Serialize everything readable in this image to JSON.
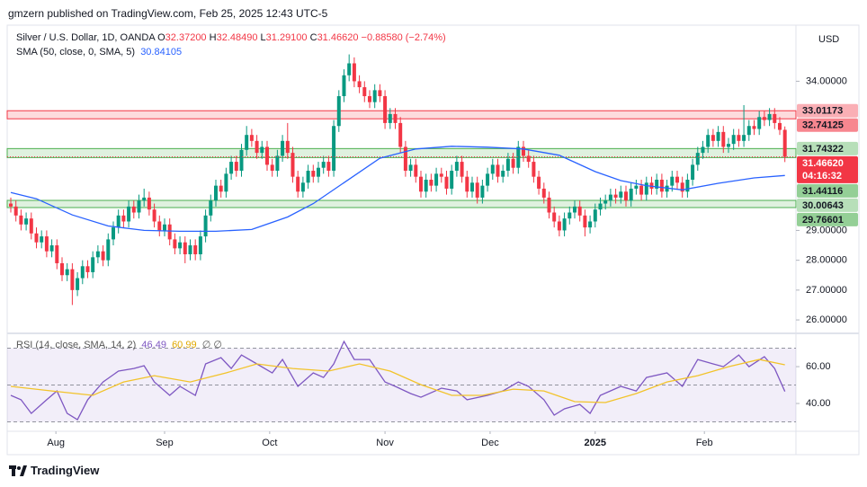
{
  "chart_data": {
    "type": "candlestick",
    "byline": "gmzern published on TradingView.com, Feb 25, 2025 12:43 UTC-5",
    "currency": "USD",
    "header": {
      "title": "Silver / U.S. Dollar, 1D, OANDA",
      "fields": [
        {
          "label": "O",
          "value": "32.37200"
        },
        {
          "label": "H",
          "value": "32.48490"
        },
        {
          "label": "L",
          "value": "31.29100"
        },
        {
          "label": "C",
          "value": "31.46620"
        }
      ],
      "change": "−0.88580 (−2.74%)"
    },
    "up_color": "#089981",
    "down_color": "#f23645",
    "ohlc": [
      [
        29.9,
        30.1,
        29.6,
        29.8
      ],
      [
        29.8,
        30.0,
        29.3,
        29.5
      ],
      [
        29.5,
        29.7,
        29.0,
        29.2
      ],
      [
        29.2,
        29.6,
        29.0,
        29.4
      ],
      [
        29.4,
        29.6,
        28.7,
        28.9
      ],
      [
        28.9,
        29.1,
        28.4,
        28.6
      ],
      [
        28.6,
        29.0,
        28.4,
        28.8
      ],
      [
        28.8,
        29.0,
        28.1,
        28.3
      ],
      [
        28.3,
        28.7,
        28.1,
        28.5
      ],
      [
        28.5,
        28.7,
        27.7,
        27.9
      ],
      [
        27.9,
        28.1,
        27.3,
        27.5
      ],
      [
        27.5,
        27.9,
        27.3,
        27.7
      ],
      [
        27.7,
        27.9,
        26.5,
        27.0
      ],
      [
        27.0,
        27.6,
        26.8,
        27.4
      ],
      [
        27.4,
        28.0,
        27.2,
        27.8
      ],
      [
        27.8,
        28.0,
        27.4,
        27.6
      ],
      [
        27.6,
        28.3,
        27.4,
        28.1
      ],
      [
        28.1,
        28.5,
        27.9,
        28.3
      ],
      [
        28.3,
        28.5,
        27.8,
        28.0
      ],
      [
        28.0,
        28.9,
        27.8,
        28.7
      ],
      [
        28.7,
        29.3,
        28.5,
        29.1
      ],
      [
        29.1,
        29.7,
        28.9,
        29.5
      ],
      [
        29.5,
        29.7,
        29.1,
        29.3
      ],
      [
        29.3,
        30.0,
        29.1,
        29.8
      ],
      [
        29.8,
        30.0,
        29.4,
        29.6
      ],
      [
        29.6,
        30.2,
        29.4,
        30.0
      ],
      [
        30.0,
        30.4,
        29.8,
        30.1
      ],
      [
        30.1,
        30.3,
        29.5,
        29.7
      ],
      [
        29.7,
        29.9,
        29.1,
        29.3
      ],
      [
        29.3,
        29.5,
        28.8,
        29.0
      ],
      [
        29.0,
        29.4,
        28.8,
        29.2
      ],
      [
        29.2,
        29.4,
        28.5,
        28.7
      ],
      [
        28.7,
        28.9,
        28.2,
        28.4
      ],
      [
        28.4,
        28.8,
        28.2,
        28.6
      ],
      [
        28.6,
        28.8,
        27.9,
        28.2
      ],
      [
        28.2,
        28.7,
        28.0,
        28.5
      ],
      [
        28.5,
        28.7,
        28.0,
        28.2
      ],
      [
        28.2,
        29.0,
        28.0,
        28.8
      ],
      [
        28.8,
        29.7,
        28.6,
        29.5
      ],
      [
        29.5,
        30.2,
        29.3,
        30.0
      ],
      [
        30.0,
        30.7,
        29.8,
        30.5
      ],
      [
        30.5,
        30.7,
        30.1,
        30.3
      ],
      [
        30.3,
        31.1,
        30.1,
        30.9
      ],
      [
        30.9,
        31.5,
        30.7,
        31.3
      ],
      [
        31.3,
        31.5,
        30.8,
        31.0
      ],
      [
        31.0,
        31.9,
        30.8,
        31.7
      ],
      [
        31.7,
        32.5,
        31.5,
        32.2
      ],
      [
        32.2,
        32.4,
        31.8,
        32.0
      ],
      [
        32.0,
        32.2,
        31.4,
        31.6
      ],
      [
        31.6,
        32.0,
        31.4,
        31.8
      ],
      [
        31.8,
        32.0,
        31.0,
        31.2
      ],
      [
        31.2,
        31.4,
        30.8,
        31.0
      ],
      [
        31.0,
        31.7,
        30.8,
        31.5
      ],
      [
        31.5,
        32.2,
        31.3,
        32.0
      ],
      [
        32.0,
        32.6,
        31.4,
        31.6
      ],
      [
        31.6,
        31.8,
        30.6,
        30.8
      ],
      [
        30.8,
        31.0,
        30.1,
        30.3
      ],
      [
        30.3,
        30.8,
        30.1,
        30.6
      ],
      [
        30.6,
        31.2,
        30.4,
        31.0
      ],
      [
        31.0,
        31.2,
        30.6,
        30.8
      ],
      [
        30.8,
        31.3,
        30.6,
        31.1
      ],
      [
        31.1,
        31.5,
        30.9,
        31.3
      ],
      [
        31.3,
        31.5,
        30.8,
        31.0
      ],
      [
        31.0,
        32.7,
        30.8,
        32.5
      ],
      [
        32.5,
        33.7,
        32.3,
        33.5
      ],
      [
        33.5,
        34.4,
        33.3,
        34.2
      ],
      [
        34.2,
        34.9,
        34.0,
        34.6
      ],
      [
        34.6,
        34.8,
        33.8,
        34.0
      ],
      [
        34.0,
        34.2,
        33.6,
        33.8
      ],
      [
        33.8,
        34.0,
        33.3,
        33.5
      ],
      [
        33.5,
        33.7,
        33.1,
        33.3
      ],
      [
        33.3,
        33.9,
        33.1,
        33.7
      ],
      [
        33.7,
        33.9,
        33.3,
        33.5
      ],
      [
        33.5,
        33.7,
        32.4,
        32.6
      ],
      [
        32.6,
        33.1,
        32.4,
        32.9
      ],
      [
        32.9,
        33.1,
        32.4,
        32.6
      ],
      [
        32.6,
        32.8,
        31.6,
        31.8
      ],
      [
        31.8,
        32.0,
        30.8,
        31.0
      ],
      [
        31.0,
        31.4,
        30.8,
        31.2
      ],
      [
        31.2,
        31.4,
        30.6,
        30.8
      ],
      [
        30.8,
        31.0,
        30.1,
        30.3
      ],
      [
        30.3,
        30.9,
        30.1,
        30.7
      ],
      [
        30.7,
        30.9,
        30.3,
        30.5
      ],
      [
        30.5,
        31.1,
        30.3,
        30.9
      ],
      [
        30.9,
        31.1,
        30.6,
        30.8
      ],
      [
        30.8,
        31.0,
        30.2,
        30.4
      ],
      [
        30.4,
        31.2,
        30.2,
        31.0
      ],
      [
        31.0,
        31.5,
        30.8,
        31.3
      ],
      [
        31.3,
        31.5,
        30.6,
        30.8
      ],
      [
        30.8,
        31.0,
        30.1,
        30.3
      ],
      [
        30.3,
        30.8,
        30.1,
        30.6
      ],
      [
        30.6,
        30.8,
        29.9,
        30.1
      ],
      [
        30.1,
        30.7,
        29.9,
        30.5
      ],
      [
        30.5,
        31.1,
        30.3,
        30.9
      ],
      [
        30.9,
        31.4,
        30.7,
        31.2
      ],
      [
        31.2,
        31.4,
        30.6,
        30.8
      ],
      [
        30.8,
        31.2,
        30.6,
        31.0
      ],
      [
        31.0,
        31.6,
        30.8,
        31.4
      ],
      [
        31.4,
        31.6,
        30.9,
        31.1
      ],
      [
        31.1,
        32.0,
        30.9,
        31.8
      ],
      [
        31.8,
        32.0,
        31.3,
        31.5
      ],
      [
        31.5,
        31.7,
        31.1,
        31.3
      ],
      [
        31.3,
        31.5,
        30.6,
        30.8
      ],
      [
        30.8,
        31.0,
        30.2,
        30.4
      ],
      [
        30.4,
        30.6,
        29.9,
        30.1
      ],
      [
        30.1,
        30.3,
        29.4,
        29.6
      ],
      [
        29.6,
        29.8,
        29.1,
        29.3
      ],
      [
        29.3,
        29.5,
        28.8,
        29.0
      ],
      [
        29.0,
        29.6,
        28.8,
        29.4
      ],
      [
        29.4,
        29.8,
        29.2,
        29.6
      ],
      [
        29.6,
        30.0,
        29.4,
        29.8
      ],
      [
        29.8,
        30.0,
        29.3,
        29.5
      ],
      [
        29.5,
        29.7,
        28.8,
        29.1
      ],
      [
        29.1,
        29.5,
        28.9,
        29.3
      ],
      [
        29.3,
        29.9,
        29.1,
        29.7
      ],
      [
        29.7,
        30.1,
        29.5,
        29.9
      ],
      [
        29.9,
        30.2,
        29.7,
        30.0
      ],
      [
        30.0,
        30.4,
        29.8,
        30.2
      ],
      [
        30.2,
        30.4,
        29.9,
        30.1
      ],
      [
        30.1,
        30.5,
        29.9,
        30.3
      ],
      [
        30.3,
        30.5,
        29.8,
        30.0
      ],
      [
        30.0,
        30.6,
        29.8,
        30.4
      ],
      [
        30.4,
        30.7,
        30.2,
        30.5
      ],
      [
        30.5,
        30.7,
        30.0,
        30.2
      ],
      [
        30.2,
        30.8,
        30.0,
        30.6
      ],
      [
        30.6,
        30.8,
        30.2,
        30.4
      ],
      [
        30.4,
        30.9,
        30.2,
        30.7
      ],
      [
        30.7,
        30.9,
        30.1,
        30.3
      ],
      [
        30.3,
        30.7,
        30.1,
        30.5
      ],
      [
        30.5,
        31.0,
        30.3,
        30.8
      ],
      [
        30.8,
        31.0,
        30.4,
        30.6
      ],
      [
        30.6,
        30.8,
        30.1,
        30.3
      ],
      [
        30.3,
        30.9,
        30.1,
        30.7
      ],
      [
        30.7,
        31.4,
        30.5,
        31.2
      ],
      [
        31.2,
        31.8,
        31.0,
        31.6
      ],
      [
        31.6,
        32.0,
        31.4,
        31.8
      ],
      [
        31.8,
        32.4,
        31.6,
        32.2
      ],
      [
        32.2,
        32.4,
        31.8,
        32.0
      ],
      [
        32.0,
        32.5,
        31.8,
        32.3
      ],
      [
        32.3,
        32.5,
        31.6,
        31.8
      ],
      [
        31.8,
        32.1,
        31.6,
        31.9
      ],
      [
        31.9,
        32.4,
        31.7,
        32.2
      ],
      [
        32.2,
        32.4,
        31.8,
        32.0
      ],
      [
        32.0,
        33.2,
        31.8,
        32.2
      ],
      [
        32.2,
        32.7,
        32.0,
        32.5
      ],
      [
        32.5,
        32.7,
        32.2,
        32.4
      ],
      [
        32.4,
        33.0,
        32.2,
        32.8
      ],
      [
        32.8,
        33.0,
        32.5,
        32.7
      ],
      [
        32.7,
        33.1,
        32.5,
        32.9
      ],
      [
        32.9,
        33.1,
        32.4,
        32.6
      ],
      [
        32.6,
        32.8,
        32.2,
        32.37
      ],
      [
        32.372,
        32.4849,
        31.291,
        31.4662
      ]
    ],
    "xlim": [
      -0.7,
      153.16
    ],
    "xticks": [
      {
        "value": 8.8,
        "label": "Aug"
      },
      {
        "value": 30,
        "label": "Sep"
      },
      {
        "value": 50.5,
        "label": "Oct"
      },
      {
        "value": 73,
        "label": "Nov"
      },
      {
        "value": 93.5,
        "label": "Dec"
      },
      {
        "value": 114,
        "label": "2025"
      },
      {
        "value": 135.3,
        "label": "Feb"
      }
    ],
    "ylim": [
      25.58,
      35.88
    ],
    "yticks": [
      {
        "value": 34,
        "label": "34.00000"
      },
      {
        "value": 29,
        "label": "29.00000"
      },
      {
        "value": 28,
        "label": "28.00000"
      },
      {
        "value": 27,
        "label": "27.00000"
      },
      {
        "value": 26,
        "label": "26.00000"
      }
    ],
    "grid": false,
    "zones": [
      {
        "from": 32.74125,
        "to": 33.01173,
        "color": "#f23645"
      },
      {
        "from": 31.44116,
        "to": 31.74322,
        "color": "#4caf50"
      },
      {
        "from": 29.76601,
        "to": 30.00643,
        "color": "#4caf50"
      }
    ],
    "last_price": {
      "value": 31.4662,
      "label": "31.46620"
    },
    "countdown": "04:16:32",
    "sma": {
      "label": "SMA (50, close, 0, SMA, 5)",
      "color": "#2962ff",
      "x": [
        0,
        5,
        12,
        19,
        26,
        33,
        40,
        47,
        54,
        59,
        65,
        72,
        79,
        86,
        93,
        100,
        107,
        114,
        119,
        124,
        131,
        138,
        145,
        151
      ],
      "values": [
        30.27,
        30.06,
        29.52,
        29.15,
        29.0,
        28.97,
        28.97,
        29.03,
        29.45,
        29.9,
        30.6,
        31.42,
        31.73,
        31.82,
        31.79,
        31.73,
        31.52,
        30.97,
        30.67,
        30.5,
        30.36,
        30.58,
        30.76,
        30.84105
      ]
    },
    "rsi": {
      "label": "RSI (14, close, SMA, 14, 2)",
      "extras": "∅ ∅",
      "ylim": [
        24.9,
        77.1
      ],
      "yticks": [
        {
          "value": 60,
          "label": "60.00"
        },
        {
          "value": 40,
          "label": "40.00"
        }
      ],
      "bands": [
        70,
        50,
        30
      ],
      "series": [
        {
          "color": "#7e57c2",
          "x": [
            0,
            2,
            4,
            7,
            9,
            11,
            13,
            15,
            18,
            21,
            24,
            26,
            28,
            31,
            33,
            36,
            38,
            41,
            43,
            45,
            48,
            51,
            53,
            56,
            59,
            61,
            63,
            65,
            67,
            70,
            73,
            75,
            78,
            80,
            84,
            87,
            89,
            93,
            96,
            99,
            101,
            104,
            106,
            108,
            111,
            113,
            115,
            119,
            122,
            124,
            128,
            131,
            134,
            137,
            139,
            142,
            144,
            147,
            149,
            151
          ],
          "values": [
            44.4,
            42,
            34.6,
            42,
            46.8,
            34.6,
            31.2,
            42,
            51.7,
            57.6,
            59,
            60.5,
            51.7,
            44.4,
            49.3,
            44.4,
            61.5,
            64.9,
            59,
            66.3,
            61.5,
            56.6,
            63.9,
            49.3,
            56.6,
            54.1,
            61.5,
            73.7,
            63.9,
            63.9,
            51.7,
            49.3,
            45.4,
            43.4,
            48.3,
            46.8,
            42,
            44.4,
            46.8,
            51.7,
            49.3,
            42,
            33.7,
            37.1,
            39.5,
            34.6,
            44.4,
            49.3,
            46.8,
            54.1,
            56.6,
            49.3,
            63.9,
            61.5,
            60,
            66.3,
            60,
            65.4,
            59,
            46.49
          ]
        },
        {
          "color": "#f2c32a",
          "x": [
            0,
            8,
            16,
            22,
            28,
            35,
            42,
            48,
            55,
            62,
            68,
            74,
            80,
            86,
            92,
            98,
            104,
            110,
            116,
            122,
            128,
            134,
            140,
            146,
            151
          ],
          "values": [
            49.3,
            46.8,
            44.4,
            51.7,
            55.1,
            51.7,
            56.6,
            61.5,
            59,
            57.6,
            61.5,
            57.6,
            50.2,
            44.4,
            44.4,
            47.8,
            46.8,
            41,
            40.5,
            45.4,
            51.7,
            55.1,
            60,
            63.9,
            60.99
          ]
        }
      ]
    },
    "brand": "TradingView"
  }
}
